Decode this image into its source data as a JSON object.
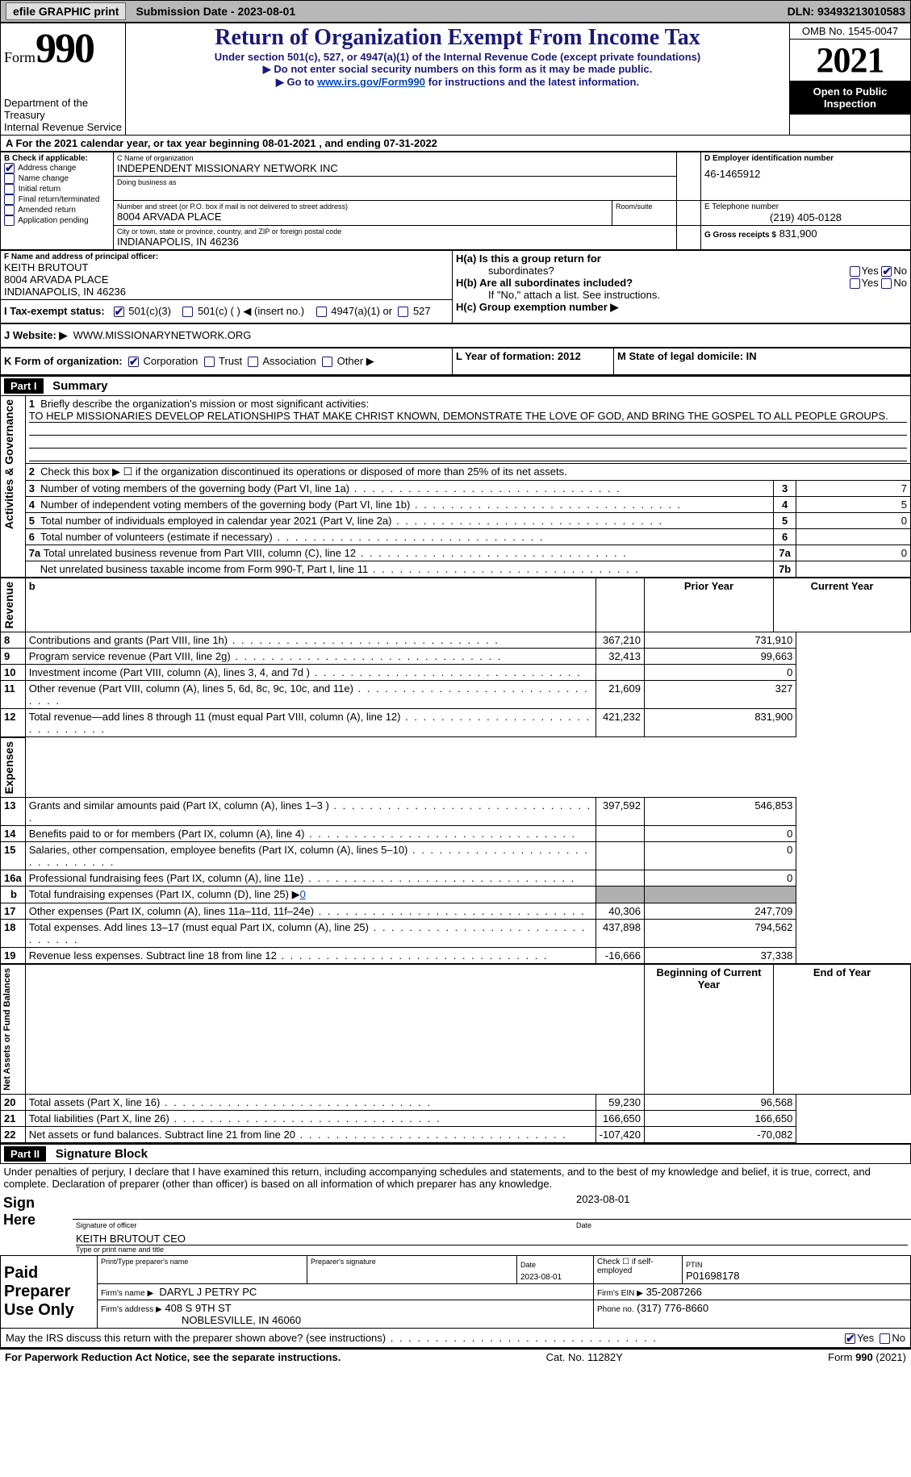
{
  "topbar": {
    "efile_label": "efile GRAPHIC print",
    "submission_label": "Submission Date - 2023-08-01",
    "dln_label": "DLN: 93493213010583"
  },
  "header": {
    "form_word": "Form",
    "form_number": "990",
    "dept": "Department of the Treasury",
    "irs": "Internal Revenue Service",
    "title": "Return of Organization Exempt From Income Tax",
    "subtitle": "Under section 501(c), 527, or 4947(a)(1) of the Internal Revenue Code (except private foundations)",
    "instr1": "▶ Do not enter social security numbers on this form as it may be made public.",
    "instr2_prefix": "▶ Go to ",
    "instr2_link": "www.irs.gov/Form990",
    "instr2_suffix": " for instructions and the latest information.",
    "omb": "OMB No. 1545-0047",
    "year": "2021",
    "open_inspection": "Open to Public Inspection"
  },
  "sectionA": {
    "line": "A  For the 2021 calendar year, or tax year beginning 08-01-2021    , and ending 07-31-2022"
  },
  "sectionB": {
    "label": "B Check if applicable:",
    "items": [
      "Address change",
      "Name change",
      "Initial return",
      "Final return/terminated",
      "Amended return",
      "Application pending"
    ],
    "checked": [
      true,
      false,
      false,
      false,
      false,
      false
    ]
  },
  "sectionC": {
    "name_label": "C Name of organization",
    "name": "INDEPENDENT MISSIONARY NETWORK INC",
    "dba_label": "Doing business as",
    "dba": "",
    "street_label": "Number and street (or P.O. box if mail is not delivered to street address)",
    "room_label": "Room/suite",
    "street": "8004 ARVADA PLACE",
    "city_label": "City or town, state or province, country, and ZIP or foreign postal code",
    "city": "INDIANAPOLIS, IN  46236"
  },
  "sectionD": {
    "label": "D Employer identification number",
    "value": "46-1465912"
  },
  "sectionE": {
    "label": "E Telephone number",
    "value": "(219) 405-0128"
  },
  "sectionG": {
    "label": "G Gross receipts $",
    "value": "831,900"
  },
  "sectionF": {
    "label": "F Name and address of principal officer:",
    "name": "KEITH BRUTOUT",
    "street": "8004 ARVADA PLACE",
    "city": "INDIANAPOLIS, IN  46236"
  },
  "sectionH": {
    "a_label": "H(a)  Is this a group return for",
    "a_sub": "subordinates?",
    "a_yes": false,
    "a_no": true,
    "b_label": "H(b)  Are all subordinates included?",
    "b_yes": false,
    "b_no": false,
    "b_note": "If \"No,\" attach a list. See instructions.",
    "c_label": "H(c)  Group exemption number ▶"
  },
  "sectionI": {
    "label": "I    Tax-exempt status:",
    "opt1": "501(c)(3)",
    "opt1_checked": true,
    "opt2": "501(c) (  ) ◀ (insert no.)",
    "opt3": "4947(a)(1) or",
    "opt4": "527"
  },
  "sectionJ": {
    "label": "J    Website: ▶",
    "value": "WWW.MISSIONARYNETWORK.ORG"
  },
  "sectionK": {
    "label": "K Form of organization:",
    "corp": "Corporation",
    "corp_checked": true,
    "trust": "Trust",
    "assoc": "Association",
    "other": "Other ▶"
  },
  "sectionL": {
    "label": "L Year of formation: 2012"
  },
  "sectionM": {
    "label": "M State of legal domicile: IN"
  },
  "part1": {
    "header": "Part I",
    "title": "Summary"
  },
  "summary": {
    "mission_label": "Briefly describe the organization's mission or most significant activities:",
    "mission": "TO HELP MISSIONARIES DEVELOP RELATIONSHIPS THAT MAKE CHRIST KNOWN, DEMONSTRATE THE LOVE OF GOD, AND BRING THE GOSPEL TO ALL PEOPLE GROUPS.",
    "line2": "Check this box ▶ ☐ if the organization discontinued its operations or disposed of more than 25% of its net assets.",
    "line3": "Number of voting members of the governing body (Part VI, line 1a)",
    "line4": "Number of independent voting members of the governing body (Part VI, line 1b)",
    "line5": "Total number of individuals employed in calendar year 2021 (Part V, line 2a)",
    "line6": "Total number of volunteers (estimate if necessary)",
    "line7a": "Total unrelated business revenue from Part VIII, column (C), line 12",
    "line7b": "Net unrelated business taxable income from Form 990-T, Part I, line 11",
    "v3": "7",
    "v4": "5",
    "v5": "0",
    "v6": "",
    "v7a": "0",
    "v7b": ""
  },
  "revenue": {
    "prior_header": "Prior Year",
    "current_header": "Current Year",
    "rows": [
      {
        "n": "8",
        "label": "Contributions and grants (Part VIII, line 1h)",
        "prior": "367,210",
        "curr": "731,910"
      },
      {
        "n": "9",
        "label": "Program service revenue (Part VIII, line 2g)",
        "prior": "32,413",
        "curr": "99,663"
      },
      {
        "n": "10",
        "label": "Investment income (Part VIII, column (A), lines 3, 4, and 7d )",
        "prior": "",
        "curr": "0"
      },
      {
        "n": "11",
        "label": "Other revenue (Part VIII, column (A), lines 5, 6d, 8c, 9c, 10c, and 11e)",
        "prior": "21,609",
        "curr": "327"
      },
      {
        "n": "12",
        "label": "Total revenue—add lines 8 through 11 (must equal Part VIII, column (A), line 12)",
        "prior": "421,232",
        "curr": "831,900"
      }
    ]
  },
  "expenses": {
    "rows": [
      {
        "n": "13",
        "label": "Grants and similar amounts paid (Part IX, column (A), lines 1–3 )",
        "prior": "397,592",
        "curr": "546,853"
      },
      {
        "n": "14",
        "label": "Benefits paid to or for members (Part IX, column (A), line 4)",
        "prior": "",
        "curr": "0"
      },
      {
        "n": "15",
        "label": "Salaries, other compensation, employee benefits (Part IX, column (A), lines 5–10)",
        "prior": "",
        "curr": "0"
      },
      {
        "n": "16a",
        "label": "Professional fundraising fees (Part IX, column (A), line 11e)",
        "prior": "",
        "curr": "0"
      },
      {
        "n": "b",
        "label": "Total fundraising expenses (Part IX, column (D), line 25) ▶",
        "inline_value": "0",
        "shaded": true
      },
      {
        "n": "17",
        "label": "Other expenses (Part IX, column (A), lines 11a–11d, 11f–24e)",
        "prior": "40,306",
        "curr": "247,709"
      },
      {
        "n": "18",
        "label": "Total expenses. Add lines 13–17 (must equal Part IX, column (A), line 25)",
        "prior": "437,898",
        "curr": "794,562"
      },
      {
        "n": "19",
        "label": "Revenue less expenses. Subtract line 18 from line 12",
        "prior": "-16,666",
        "curr": "37,338"
      }
    ]
  },
  "netassets": {
    "begin_header": "Beginning of Current Year",
    "end_header": "End of Year",
    "rows": [
      {
        "n": "20",
        "label": "Total assets (Part X, line 16)",
        "prior": "59,230",
        "curr": "96,568"
      },
      {
        "n": "21",
        "label": "Total liabilities (Part X, line 26)",
        "prior": "166,650",
        "curr": "166,650"
      },
      {
        "n": "22",
        "label": "Net assets or fund balances. Subtract line 21 from line 20",
        "prior": "-107,420",
        "curr": "-70,082"
      }
    ]
  },
  "vert_labels": {
    "activities": "Activities & Governance",
    "revenue": "Revenue",
    "expenses": "Expenses",
    "netassets": "Net Assets or Fund Balances"
  },
  "part2": {
    "header": "Part II",
    "title": "Signature Block",
    "declaration": "Under penalties of perjury, I declare that I have examined this return, including accompanying schedules and statements, and to the best of my knowledge and belief, it is true, correct, and complete. Declaration of preparer (other than officer) is based on all information of which preparer has any knowledge."
  },
  "sign": {
    "sign_here": "Sign Here",
    "sig_officer": "Signature of officer",
    "date_label": "Date",
    "date": "2023-08-01",
    "name_title": "KEITH BRUTOUT CEO",
    "type_label": "Type or print name and title"
  },
  "preparer": {
    "title": "Paid Preparer Use Only",
    "print_name_label": "Print/Type preparer's name",
    "sig_label": "Preparer's signature",
    "date_label": "Date",
    "date": "2023-08-01",
    "check_label": "Check ☐ if self-employed",
    "ptin_label": "PTIN",
    "ptin": "P01698178",
    "firm_name_label": "Firm's name    ▶",
    "firm_name": "DARYL J PETRY PC",
    "firm_ein_label": "Firm's EIN ▶",
    "firm_ein": "35-2087266",
    "firm_addr_label": "Firm's address ▶",
    "firm_addr1": "408 S 9TH ST",
    "firm_addr2": "NOBLESVILLE, IN  46060",
    "phone_label": "Phone no.",
    "phone": "(317) 776-8660"
  },
  "discuss": {
    "label": "May the IRS discuss this return with the preparer shown above? (see instructions)",
    "yes": true,
    "no": false
  },
  "footer": {
    "left": "For Paperwork Reduction Act Notice, see the separate instructions.",
    "mid": "Cat. No. 11282Y",
    "right": "Form 990 (2021)"
  }
}
